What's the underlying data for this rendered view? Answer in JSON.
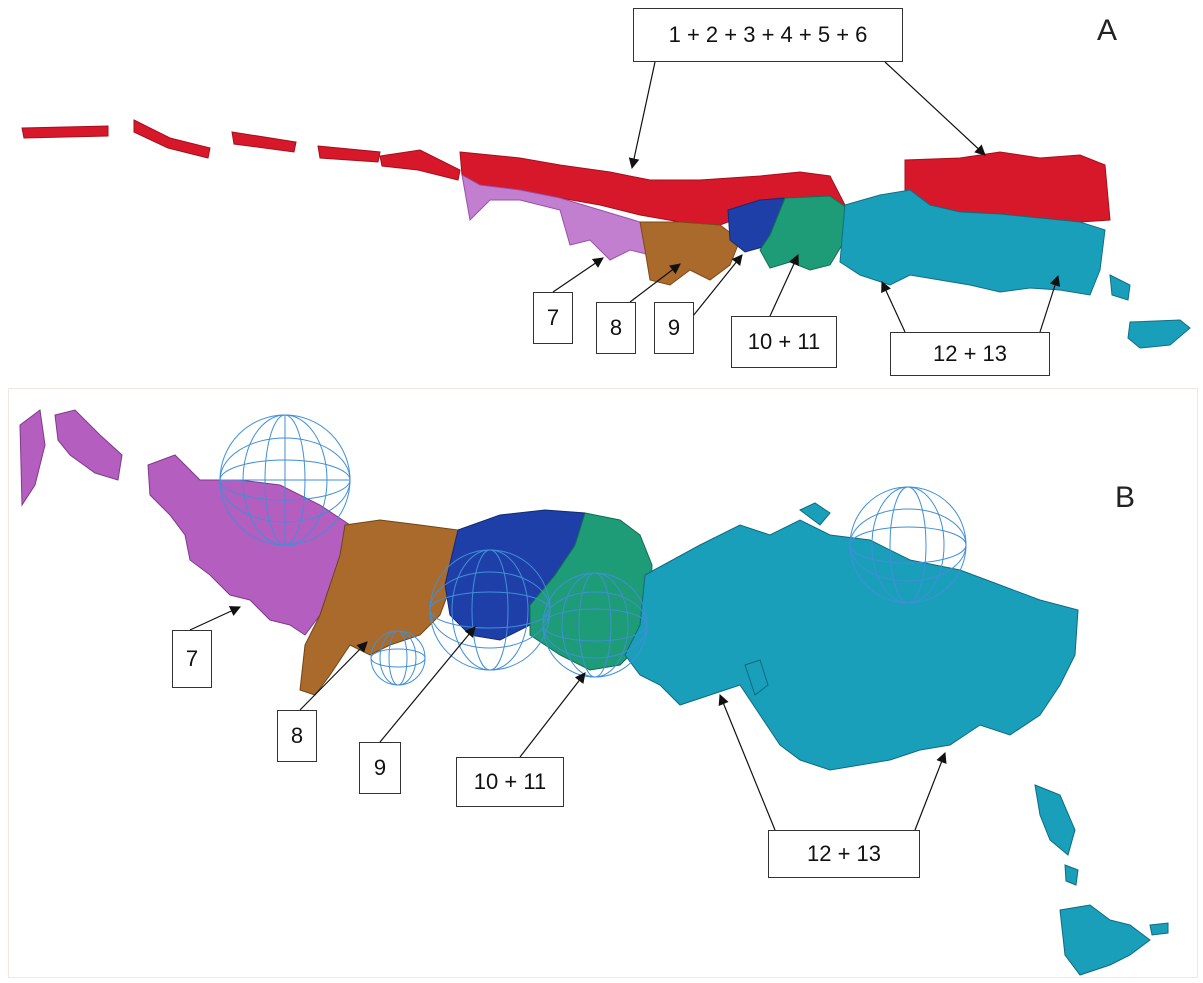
{
  "panel_a": {
    "letter": "A",
    "labels": {
      "top": "1 + 2 + 3 + 4 + 5 + 6",
      "l7": "7",
      "l8": "8",
      "l9": "9",
      "l10_11": "10 + 11",
      "l12_13": "12 + 13"
    }
  },
  "panel_b": {
    "letter": "B",
    "labels": {
      "l7": "7",
      "l8": "8",
      "l9": "9",
      "l10_11": "10 + 11",
      "l12_13": "12 + 13"
    }
  },
  "colors": {
    "layer_1_6": "#d7182a",
    "layer_7": "#b45ec0",
    "layer_8": "#a96a2c",
    "layer_9": "#1f3fa8",
    "layer_10_11": "#1e9c78",
    "layer_12_13": "#1a9fba",
    "sphere_wire": "#3f8fd8"
  }
}
